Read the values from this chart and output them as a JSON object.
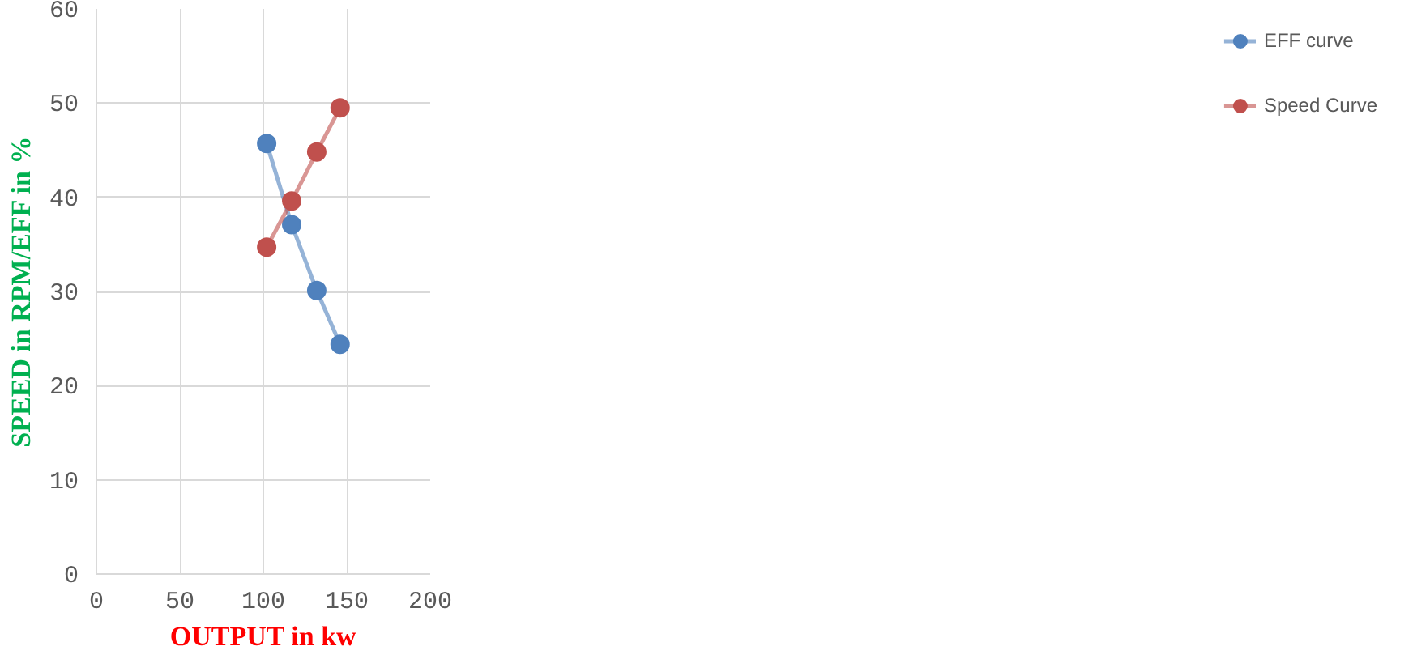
{
  "chart_data": {
    "type": "line",
    "xlabel": "OUTPUT in kw",
    "ylabel": "SPEED in RPM/EFF in %",
    "x": [
      102,
      117,
      132,
      146
    ],
    "series": [
      {
        "name": "EFF curve",
        "color": "#4f81bd",
        "values": [
          45.7,
          37.1,
          30.1,
          24.4
        ]
      },
      {
        "name": "Speed Curve",
        "color": "#c0504d",
        "values": [
          34.7,
          39.6,
          44.8,
          49.5
        ]
      }
    ],
    "xlim": [
      0,
      200
    ],
    "xticks": [
      0,
      50,
      100,
      150,
      200
    ],
    "ylim": [
      0,
      60
    ],
    "yticks": [
      0,
      10,
      20,
      30,
      40,
      50,
      60
    ],
    "grid": true,
    "legend": "right",
    "marker": "circle"
  }
}
